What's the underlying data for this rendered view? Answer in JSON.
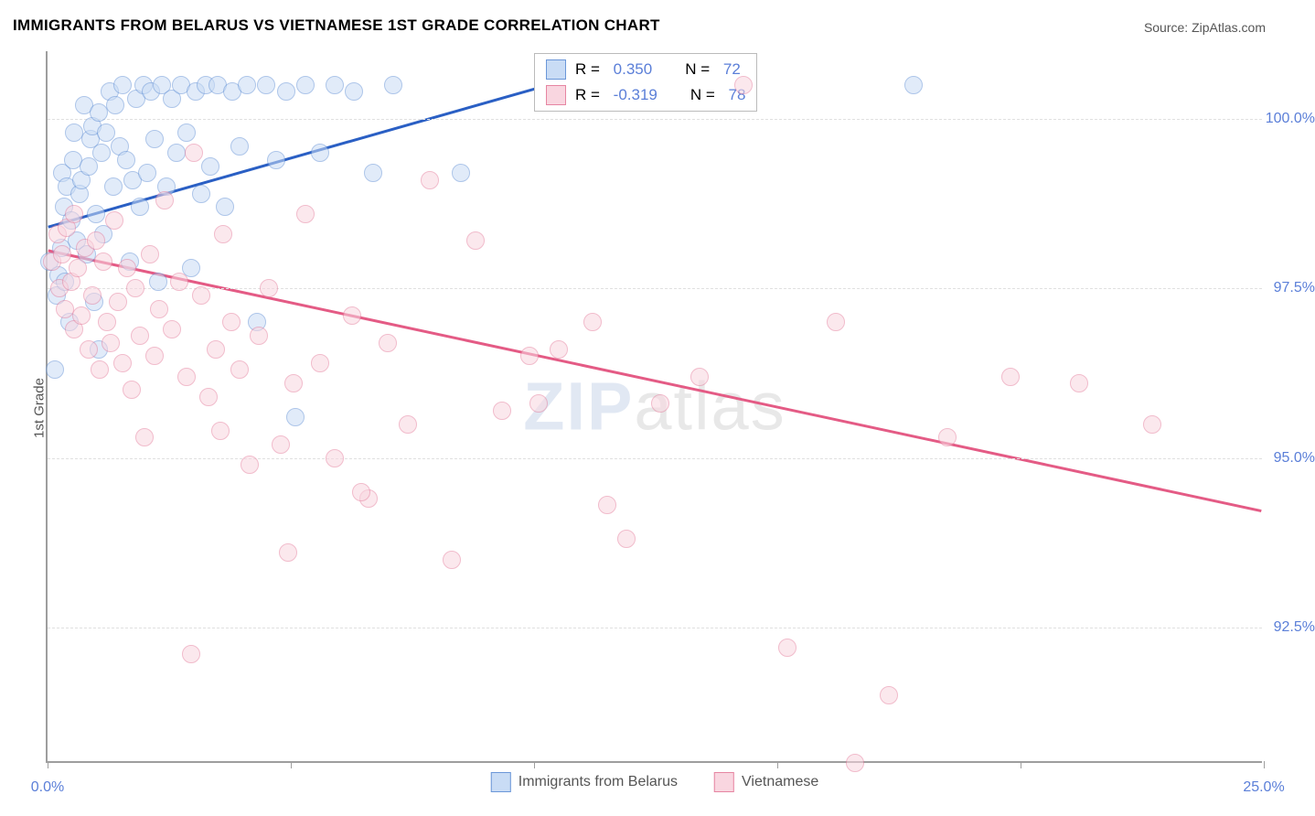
{
  "title": "IMMIGRANTS FROM BELARUS VS VIETNAMESE 1ST GRADE CORRELATION CHART",
  "source": "Source: ZipAtlas.com",
  "y_axis_label": "1st Grade",
  "watermark_z": "ZIP",
  "watermark_rest": "atlas",
  "chart": {
    "type": "scatter",
    "xlim": [
      0,
      25
    ],
    "ylim": [
      90.5,
      101
    ],
    "x_ticks": [
      0,
      5,
      10,
      15,
      20,
      25
    ],
    "x_tick_labels": {
      "0": "0.0%",
      "25": "25.0%"
    },
    "y_ticks": [
      92.5,
      95.0,
      97.5,
      100.0
    ],
    "y_tick_labels": [
      "92.5%",
      "95.0%",
      "97.5%",
      "100.0%"
    ],
    "grid_color": "#e0e0e0",
    "background_color": "#ffffff",
    "axis_label_color": "#5b7fd8",
    "axis_line_color": "#9e9e9e",
    "point_radius": 10,
    "series": [
      {
        "name": "Immigrants from Belarus",
        "color_fill": "#c9dcf5",
        "color_stroke": "#6b97d8",
        "fill_opacity": 0.55,
        "r": 0.35,
        "r_label": "0.350",
        "n": 72,
        "trend": {
          "x1": 0,
          "y1": 98.4,
          "x2": 10.8,
          "y2": 100.6,
          "color": "#2a5fc4",
          "width": 3
        },
        "points": [
          [
            0.03,
            97.9
          ],
          [
            0.15,
            96.3
          ],
          [
            0.18,
            97.4
          ],
          [
            0.22,
            97.7
          ],
          [
            0.28,
            98.1
          ],
          [
            0.3,
            99.2
          ],
          [
            0.33,
            98.7
          ],
          [
            0.4,
            99.0
          ],
          [
            0.45,
            97.0
          ],
          [
            0.48,
            98.5
          ],
          [
            0.52,
            99.4
          ],
          [
            0.55,
            99.8
          ],
          [
            0.6,
            98.2
          ],
          [
            0.65,
            98.9
          ],
          [
            0.7,
            99.1
          ],
          [
            0.75,
            100.2
          ],
          [
            0.8,
            98.0
          ],
          [
            0.85,
            99.3
          ],
          [
            0.88,
            99.7
          ],
          [
            0.92,
            99.9
          ],
          [
            0.95,
            97.3
          ],
          [
            1.0,
            98.6
          ],
          [
            1.05,
            100.1
          ],
          [
            1.1,
            99.5
          ],
          [
            1.15,
            98.3
          ],
          [
            1.2,
            99.8
          ],
          [
            1.28,
            100.4
          ],
          [
            1.35,
            99.0
          ],
          [
            1.4,
            100.2
          ],
          [
            1.48,
            99.6
          ],
          [
            1.55,
            100.5
          ],
          [
            1.62,
            99.4
          ],
          [
            1.7,
            97.9
          ],
          [
            1.75,
            99.1
          ],
          [
            1.82,
            100.3
          ],
          [
            1.9,
            98.7
          ],
          [
            1.98,
            100.5
          ],
          [
            2.05,
            99.2
          ],
          [
            2.12,
            100.4
          ],
          [
            2.2,
            99.7
          ],
          [
            2.28,
            97.6
          ],
          [
            2.35,
            100.5
          ],
          [
            2.45,
            99.0
          ],
          [
            2.55,
            100.3
          ],
          [
            2.65,
            99.5
          ],
          [
            2.75,
            100.5
          ],
          [
            2.85,
            99.8
          ],
          [
            2.95,
            97.8
          ],
          [
            3.05,
            100.4
          ],
          [
            3.15,
            98.9
          ],
          [
            3.25,
            100.5
          ],
          [
            3.35,
            99.3
          ],
          [
            3.5,
            100.5
          ],
          [
            3.65,
            98.7
          ],
          [
            3.8,
            100.4
          ],
          [
            3.95,
            99.6
          ],
          [
            4.1,
            100.5
          ],
          [
            4.3,
            97.0
          ],
          [
            4.5,
            100.5
          ],
          [
            4.7,
            99.4
          ],
          [
            4.9,
            100.4
          ],
          [
            5.1,
            95.6
          ],
          [
            5.3,
            100.5
          ],
          [
            5.6,
            99.5
          ],
          [
            5.9,
            100.5
          ],
          [
            6.3,
            100.4
          ],
          [
            6.7,
            99.2
          ],
          [
            7.1,
            100.5
          ],
          [
            8.5,
            99.2
          ],
          [
            17.8,
            100.5
          ],
          [
            1.05,
            96.6
          ],
          [
            0.35,
            97.6
          ]
        ]
      },
      {
        "name": "Vietnamese",
        "color_fill": "#f9d6e0",
        "color_stroke": "#e685a2",
        "fill_opacity": 0.55,
        "r": -0.319,
        "r_label": "-0.319",
        "n": 78,
        "trend": {
          "x1": 0,
          "y1": 98.05,
          "x2": 25,
          "y2": 94.2,
          "color": "#e45b85",
          "width": 3
        },
        "points": [
          [
            0.1,
            97.9
          ],
          [
            0.2,
            98.3
          ],
          [
            0.25,
            97.5
          ],
          [
            0.3,
            98.0
          ],
          [
            0.35,
            97.2
          ],
          [
            0.4,
            98.4
          ],
          [
            0.48,
            97.6
          ],
          [
            0.55,
            96.9
          ],
          [
            0.62,
            97.8
          ],
          [
            0.7,
            97.1
          ],
          [
            0.78,
            98.1
          ],
          [
            0.85,
            96.6
          ],
          [
            0.92,
            97.4
          ],
          [
            1.0,
            98.2
          ],
          [
            1.08,
            96.3
          ],
          [
            1.15,
            97.9
          ],
          [
            1.22,
            97.0
          ],
          [
            1.3,
            96.7
          ],
          [
            1.38,
            98.5
          ],
          [
            1.45,
            97.3
          ],
          [
            1.55,
            96.4
          ],
          [
            1.63,
            97.8
          ],
          [
            1.72,
            96.0
          ],
          [
            1.8,
            97.5
          ],
          [
            1.9,
            96.8
          ],
          [
            2.0,
            95.3
          ],
          [
            2.1,
            98.0
          ],
          [
            2.2,
            96.5
          ],
          [
            2.3,
            97.2
          ],
          [
            2.4,
            98.8
          ],
          [
            2.55,
            96.9
          ],
          [
            2.7,
            97.6
          ],
          [
            2.85,
            96.2
          ],
          [
            3.0,
            99.5
          ],
          [
            3.15,
            97.4
          ],
          [
            3.3,
            95.9
          ],
          [
            3.45,
            96.6
          ],
          [
            3.6,
            98.3
          ],
          [
            3.78,
            97.0
          ],
          [
            3.95,
            96.3
          ],
          [
            4.15,
            94.9
          ],
          [
            4.35,
            96.8
          ],
          [
            4.55,
            97.5
          ],
          [
            4.8,
            95.2
          ],
          [
            5.05,
            96.1
          ],
          [
            5.3,
            98.6
          ],
          [
            5.6,
            96.4
          ],
          [
            5.9,
            95.0
          ],
          [
            6.25,
            97.1
          ],
          [
            6.6,
            94.4
          ],
          [
            7.0,
            96.7
          ],
          [
            7.4,
            95.5
          ],
          [
            7.85,
            99.1
          ],
          [
            8.3,
            93.5
          ],
          [
            8.8,
            98.2
          ],
          [
            9.35,
            95.7
          ],
          [
            9.9,
            96.5
          ],
          [
            10.5,
            96.6
          ],
          [
            11.2,
            97.0
          ],
          [
            11.9,
            93.8
          ],
          [
            12.6,
            95.8
          ],
          [
            13.4,
            96.2
          ],
          [
            14.3,
            100.5
          ],
          [
            15.2,
            92.2
          ],
          [
            16.2,
            97.0
          ],
          [
            17.3,
            91.5
          ],
          [
            18.5,
            95.3
          ],
          [
            19.8,
            96.2
          ],
          [
            21.2,
            96.1
          ],
          [
            22.7,
            95.5
          ],
          [
            2.95,
            92.1
          ],
          [
            4.95,
            93.6
          ],
          [
            6.45,
            94.5
          ],
          [
            10.1,
            95.8
          ],
          [
            16.6,
            90.5
          ],
          [
            11.5,
            94.3
          ],
          [
            3.55,
            95.4
          ],
          [
            0.55,
            98.6
          ]
        ]
      }
    ]
  },
  "legend": {
    "r_prefix": "R = ",
    "n_prefix": "N = "
  }
}
